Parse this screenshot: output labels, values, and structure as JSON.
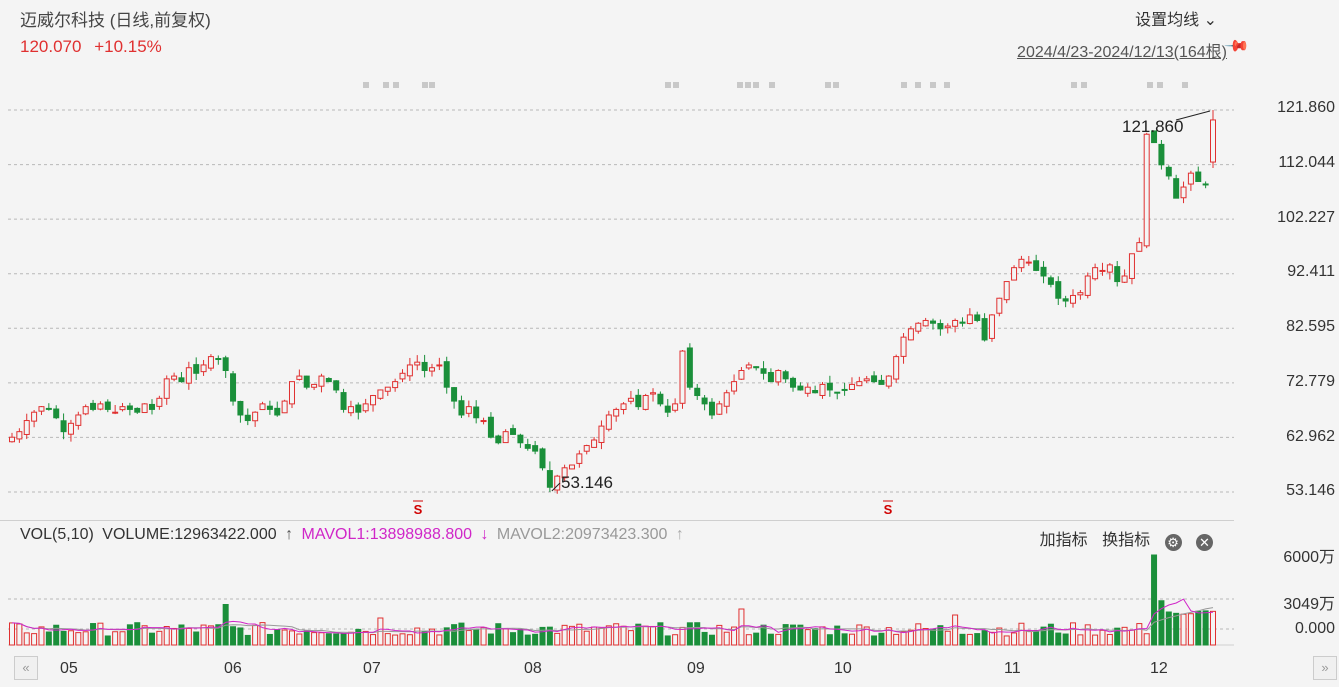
{
  "header": {
    "title": "迈威尔科技 (日线,前复权)",
    "price": "120.070",
    "change_pct": "+10.15%",
    "set_ma_label": "设置均线",
    "range_label": "2024/4/23-2024/12/13(164根)"
  },
  "volume_panel": {
    "name": "VOL(5,10)",
    "volume": "VOLUME:12963422.000",
    "volume_arrow": "↑",
    "mavol1": "MAVOL1:13898988.800",
    "mavol1_arrow": "↓",
    "mavol2": "MAVOL2:20973423.300",
    "mavol2_arrow": "↑",
    "add_indicator": "加指标",
    "switch_indicator": "换指标",
    "y_labels": [
      "6000万",
      "3049万",
      "0.000"
    ]
  },
  "colors": {
    "up": "#e03030",
    "down": "#1a8f3a",
    "mavol1": "#d026c8",
    "mavol2": "#999999"
  },
  "icons": {
    "settings": "gear-icon",
    "close": "close-icon",
    "pin": "pin-icon"
  },
  "chart_data": {
    "type": "candlestick",
    "price_axis": {
      "ticks": [
        "121.860",
        "112.044",
        "102.227",
        "92.411",
        "82.595",
        "72.779",
        "62.962",
        "53.146"
      ],
      "ylim": [
        53.146,
        121.86
      ]
    },
    "annotations": {
      "high": "121.860",
      "low": "53.146"
    },
    "x_labels": [
      "05",
      "06",
      "07",
      "08",
      "09",
      "10",
      "11",
      "12"
    ],
    "signal_marker": "S",
    "closes": [
      63.0,
      64.0,
      66.0,
      67.5,
      68.5,
      68.0,
      66.5,
      64.0,
      65.5,
      67.0,
      68.5,
      68.0,
      69.0,
      68.0,
      67.5,
      68.5,
      68.0,
      67.5,
      69.0,
      68.0,
      70.0,
      73.5,
      74.0,
      73.0,
      75.5,
      74.5,
      76.0,
      77.5,
      77.0,
      75.0,
      69.5,
      67.0,
      66.0,
      67.5,
      69.0,
      68.0,
      67.0,
      69.5,
      73.0,
      74.0,
      72.0,
      72.5,
      74.0,
      73.0,
      71.5,
      68.0,
      68.5,
      67.5,
      69.0,
      70.5,
      71.5,
      72.0,
      73.0,
      74.5,
      76.0,
      76.5,
      75.0,
      75.5,
      76.0,
      72.0,
      69.5,
      67.0,
      68.5,
      66.5,
      66.0,
      63.0,
      62.0,
      64.0,
      63.5,
      62.0,
      61.0,
      60.5,
      57.5,
      54.0,
      56.0,
      57.5,
      58.0,
      60.0,
      61.5,
      62.5,
      65.0,
      67.0,
      68.0,
      69.0,
      70.0,
      68.5,
      70.5,
      71.0,
      69.0,
      67.5,
      69.0,
      78.5,
      72.0,
      70.5,
      69.0,
      67.0,
      69.0,
      71.0,
      73.0,
      75.0,
      76.0,
      75.5,
      74.5,
      73.0,
      75.0,
      73.5,
      72.0,
      71.5,
      72.0,
      71.0,
      72.5,
      71.5,
      71.0,
      71.5,
      72.5,
      73.0,
      73.5,
      73.0,
      72.5,
      74.0,
      77.5,
      81.0,
      82.5,
      83.5,
      84.0,
      83.5,
      82.5,
      83.0,
      84.0,
      83.5,
      85.0,
      84.0,
      80.5,
      85.0,
      88.0,
      91.0,
      93.5,
      95.0,
      94.5,
      93.0,
      92.0,
      90.5,
      88.0,
      87.5,
      88.5,
      89.0,
      92.0,
      93.5,
      93.0,
      94.0,
      91.0,
      92.0,
      96.0,
      98.0,
      117.5,
      116.0,
      112.0,
      110.0,
      106.0,
      108.0,
      110.5,
      109.0,
      108.5,
      120.07
    ],
    "mavol_series": [
      {
        "name": "MAVOL1"
      },
      {
        "name": "MAVOL2"
      }
    ]
  }
}
